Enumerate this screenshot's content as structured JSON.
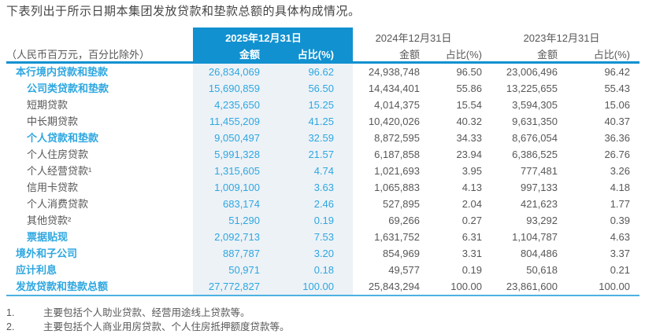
{
  "page": {
    "title": "下表列出于所示日期本集团发放贷款和垫款总额的具体构成情况。"
  },
  "table": {
    "unit_note": "（人民币百万元，百分比除外）",
    "col_groups": [
      {
        "date": "2025年12月31日",
        "amount_label": "金额",
        "pct_label": "占比(%)",
        "highlight": true
      },
      {
        "date": "2024年12月31日",
        "amount_label": "金额",
        "pct_label": "占比(%)",
        "highlight": false
      },
      {
        "date": "2023年12月31日",
        "amount_label": "金额",
        "pct_label": "占比(%)",
        "highlight": false
      }
    ],
    "rows": [
      {
        "label": "本行境内贷款和垫款",
        "indent": 0,
        "emphasis": true,
        "y2025": {
          "amount": "26,834,069",
          "pct": "96.62"
        },
        "y2024": {
          "amount": "24,938,748",
          "pct": "96.50"
        },
        "y2023": {
          "amount": "23,006,496",
          "pct": "96.42"
        }
      },
      {
        "label": "公司类贷款和垫款",
        "indent": 1,
        "emphasis": true,
        "y2025": {
          "amount": "15,690,859",
          "pct": "56.50"
        },
        "y2024": {
          "amount": "14,434,401",
          "pct": "55.86"
        },
        "y2023": {
          "amount": "13,225,655",
          "pct": "55.43"
        }
      },
      {
        "label": "短期贷款",
        "indent": 1,
        "emphasis": false,
        "y2025": {
          "amount": "4,235,650",
          "pct": "15.25"
        },
        "y2024": {
          "amount": "4,014,375",
          "pct": "15.54"
        },
        "y2023": {
          "amount": "3,594,305",
          "pct": "15.06"
        }
      },
      {
        "label": "中长期贷款",
        "indent": 1,
        "emphasis": false,
        "y2025": {
          "amount": "11,455,209",
          "pct": "41.25"
        },
        "y2024": {
          "amount": "10,420,026",
          "pct": "40.32"
        },
        "y2023": {
          "amount": "9,631,350",
          "pct": "40.37"
        }
      },
      {
        "label": "个人贷款和垫款",
        "indent": 1,
        "emphasis": true,
        "y2025": {
          "amount": "9,050,497",
          "pct": "32.59"
        },
        "y2024": {
          "amount": "8,872,595",
          "pct": "34.33"
        },
        "y2023": {
          "amount": "8,676,054",
          "pct": "36.36"
        }
      },
      {
        "label": "个人住房贷款",
        "indent": 1,
        "emphasis": false,
        "y2025": {
          "amount": "5,991,328",
          "pct": "21.57"
        },
        "y2024": {
          "amount": "6,187,858",
          "pct": "23.94"
        },
        "y2023": {
          "amount": "6,386,525",
          "pct": "26.76"
        }
      },
      {
        "label": "个人经营贷款¹",
        "indent": 1,
        "emphasis": false,
        "y2025": {
          "amount": "1,315,605",
          "pct": "4.74"
        },
        "y2024": {
          "amount": "1,021,693",
          "pct": "3.95"
        },
        "y2023": {
          "amount": "777,481",
          "pct": "3.26"
        }
      },
      {
        "label": "信用卡贷款",
        "indent": 1,
        "emphasis": false,
        "y2025": {
          "amount": "1,009,100",
          "pct": "3.63"
        },
        "y2024": {
          "amount": "1,065,883",
          "pct": "4.13"
        },
        "y2023": {
          "amount": "997,133",
          "pct": "4.18"
        }
      },
      {
        "label": "个人消费贷款",
        "indent": 1,
        "emphasis": false,
        "y2025": {
          "amount": "683,174",
          "pct": "2.46"
        },
        "y2024": {
          "amount": "527,895",
          "pct": "2.04"
        },
        "y2023": {
          "amount": "421,623",
          "pct": "1.77"
        }
      },
      {
        "label": "其他贷款²",
        "indent": 1,
        "emphasis": false,
        "y2025": {
          "amount": "51,290",
          "pct": "0.19"
        },
        "y2024": {
          "amount": "69,266",
          "pct": "0.27"
        },
        "y2023": {
          "amount": "93,292",
          "pct": "0.39"
        }
      },
      {
        "label": "票据贴现",
        "indent": 1,
        "emphasis": true,
        "y2025": {
          "amount": "2,092,713",
          "pct": "7.53"
        },
        "y2024": {
          "amount": "1,631,752",
          "pct": "6.31"
        },
        "y2023": {
          "amount": "1,104,787",
          "pct": "4.63"
        }
      },
      {
        "label": "境外和子公司",
        "indent": 0,
        "emphasis": true,
        "y2025": {
          "amount": "887,787",
          "pct": "3.20"
        },
        "y2024": {
          "amount": "854,969",
          "pct": "3.31"
        },
        "y2023": {
          "amount": "804,486",
          "pct": "3.37"
        }
      },
      {
        "label": "应计利息",
        "indent": 0,
        "emphasis": true,
        "y2025": {
          "amount": "50,971",
          "pct": "0.18"
        },
        "y2024": {
          "amount": "49,577",
          "pct": "0.19"
        },
        "y2023": {
          "amount": "50,618",
          "pct": "0.21"
        }
      },
      {
        "label": "发放贷款和垫款总额",
        "indent": 0,
        "emphasis": true,
        "y2025": {
          "amount": "27,772,827",
          "pct": "100.00"
        },
        "y2024": {
          "amount": "25,843,294",
          "pct": "100.00"
        },
        "y2023": {
          "amount": "23,861,600",
          "pct": "100.00"
        }
      }
    ]
  },
  "footnotes": [
    {
      "num": "1.",
      "text": "主要包括个人助业贷款、经营用途线上贷款等。"
    },
    {
      "num": "2.",
      "text": "主要包括个人商业用房贷款、个人住房抵押额度贷款等。"
    }
  ],
  "colors": {
    "header_blue": "#1191d0",
    "accent_blue": "#2ea7e0",
    "highlight_bg": "#edf2f7",
    "text_gray": "#595757",
    "bottom_rule": "#4db1e2"
  }
}
